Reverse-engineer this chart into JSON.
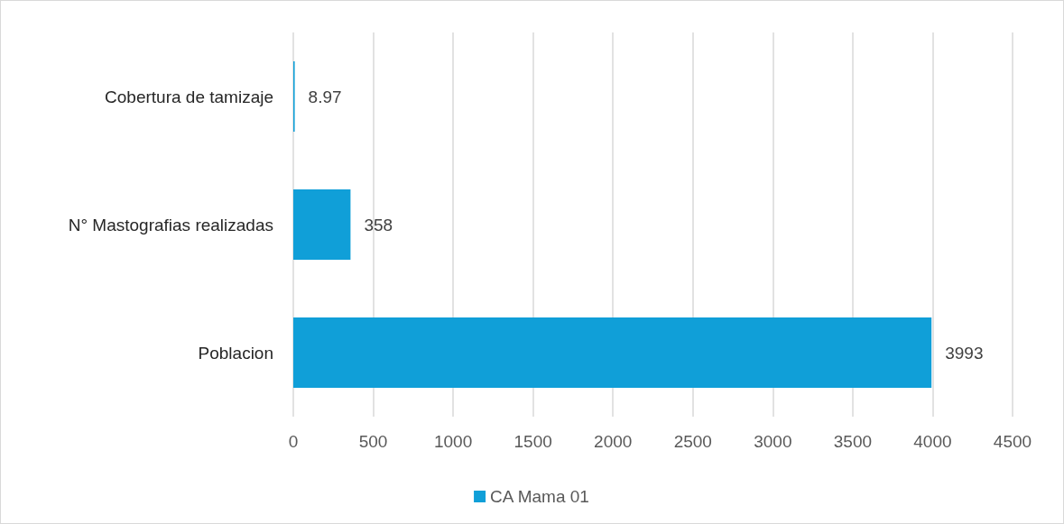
{
  "chart_data": {
    "type": "bar",
    "orientation": "horizontal",
    "categories": [
      "Cobertura de tamizaje",
      "N° Mastografias realizadas",
      "Poblacion"
    ],
    "series": [
      {
        "name": "CA Mama 01",
        "color": "#109fd8",
        "values": [
          8.97,
          358,
          3993
        ]
      }
    ],
    "xlim": [
      0,
      4500
    ],
    "xticks": [
      0,
      500,
      1000,
      1500,
      2000,
      2500,
      3000,
      3500,
      4000,
      4500
    ],
    "grid": "x",
    "legend": "bottom",
    "data_labels": true
  }
}
